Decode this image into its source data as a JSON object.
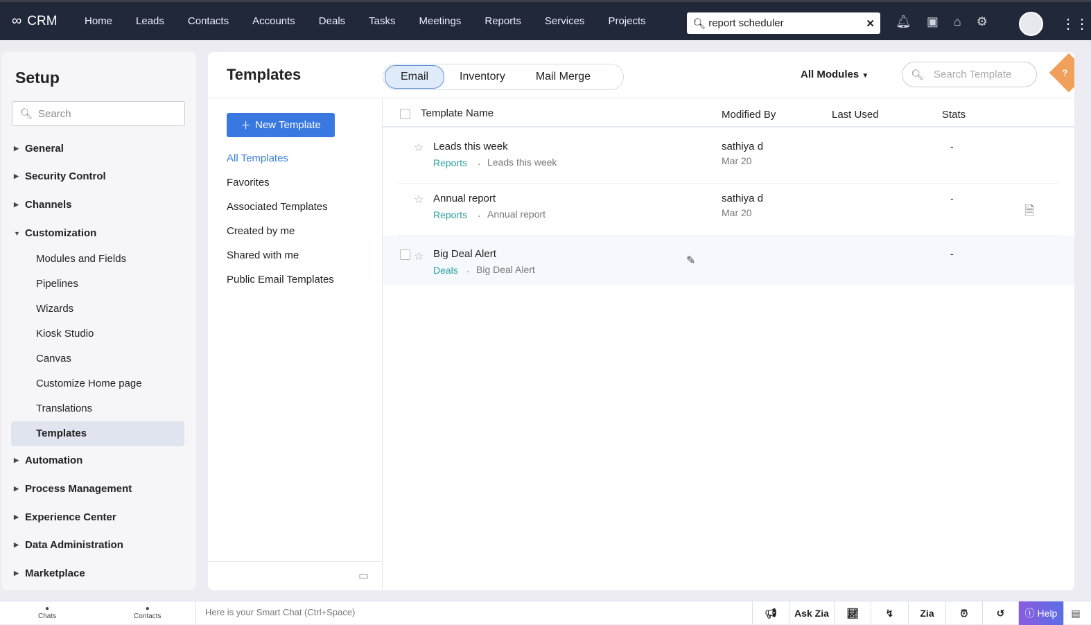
{
  "topbar": {
    "brand": "CRM",
    "nav": [
      "Home",
      "Leads",
      "Contacts",
      "Accounts",
      "Deals",
      "Tasks",
      "Meetings",
      "Reports",
      "Services",
      "Projects"
    ],
    "search_value": "report scheduler"
  },
  "sidebar": {
    "title": "Setup",
    "search_placeholder": "Search",
    "sections": [
      "General",
      "Security Control",
      "Channels",
      "Customization",
      "Automation",
      "Process Management",
      "Experience Center",
      "Data Administration",
      "Marketplace"
    ],
    "customization_items": [
      "Modules and Fields",
      "Pipelines",
      "Wizards",
      "Kiosk Studio",
      "Canvas",
      "Customize Home page",
      "Translations",
      "Templates"
    ]
  },
  "main": {
    "title": "Templates",
    "tabs": [
      "Email",
      "Inventory",
      "Mail Merge"
    ],
    "module_filter": "All Modules",
    "search_placeholder": "Search Template",
    "new_button": "New Template",
    "filters": [
      "All Templates",
      "Favorites",
      "Associated Templates",
      "Created by me",
      "Shared with me",
      "Public Email Templates"
    ],
    "columns": [
      "Template Name",
      "Modified By",
      "Last Used",
      "Stats"
    ],
    "rows": [
      {
        "name": "Leads this week",
        "module": "Reports",
        "subject": "Leads this week",
        "modified_by": "sathiya d",
        "date": "Mar 20",
        "stats": "-"
      },
      {
        "name": "Annual report",
        "module": "Reports",
        "subject": "Annual report",
        "modified_by": "sathiya d",
        "date": "Mar 20",
        "stats": "-"
      },
      {
        "name": "Big Deal Alert",
        "module": "Deals",
        "subject": "Big Deal Alert",
        "modified_by": "",
        "date": "",
        "stats": "-"
      }
    ]
  },
  "bottombar": {
    "chats": "Chats",
    "contacts": "Contacts",
    "smart_chat": "Here is your Smart Chat (Ctrl+Space)",
    "ask_zia": "Ask Zia",
    "help": "Help"
  },
  "colors": {
    "topbar": "#202839",
    "accent": "#3878e0",
    "module_link": "#2aa0a0",
    "help": "#7b5ce0"
  }
}
